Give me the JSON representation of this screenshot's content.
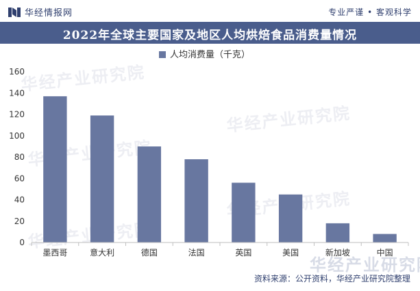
{
  "header": {
    "brand": "华经情报网",
    "slogan": "专业严谨 • 客观科学"
  },
  "title": "2022年全球主要国家及地区人均烘焙食品消费量情况",
  "source": "资料来源：公开资料，华经产业研究院整理",
  "watermark_text": "华经产业研究院",
  "colors": {
    "bar": "#6877a0",
    "title_bg": "#4a5d8c",
    "text": "#2f3f6e"
  },
  "chart_data": {
    "type": "bar",
    "categories": [
      "墨西哥",
      "意大利",
      "德国",
      "法国",
      "英国",
      "美国",
      "新加坡",
      "中国"
    ],
    "series": [
      {
        "name": "人均消费量（千克）",
        "values": [
          137,
          119,
          90,
          78,
          56,
          45,
          18,
          8
        ]
      }
    ],
    "ylim": [
      0,
      160
    ],
    "yticks": [
      0,
      20,
      40,
      60,
      80,
      100,
      120,
      140,
      160
    ],
    "legend": "top-center",
    "grid": false
  }
}
